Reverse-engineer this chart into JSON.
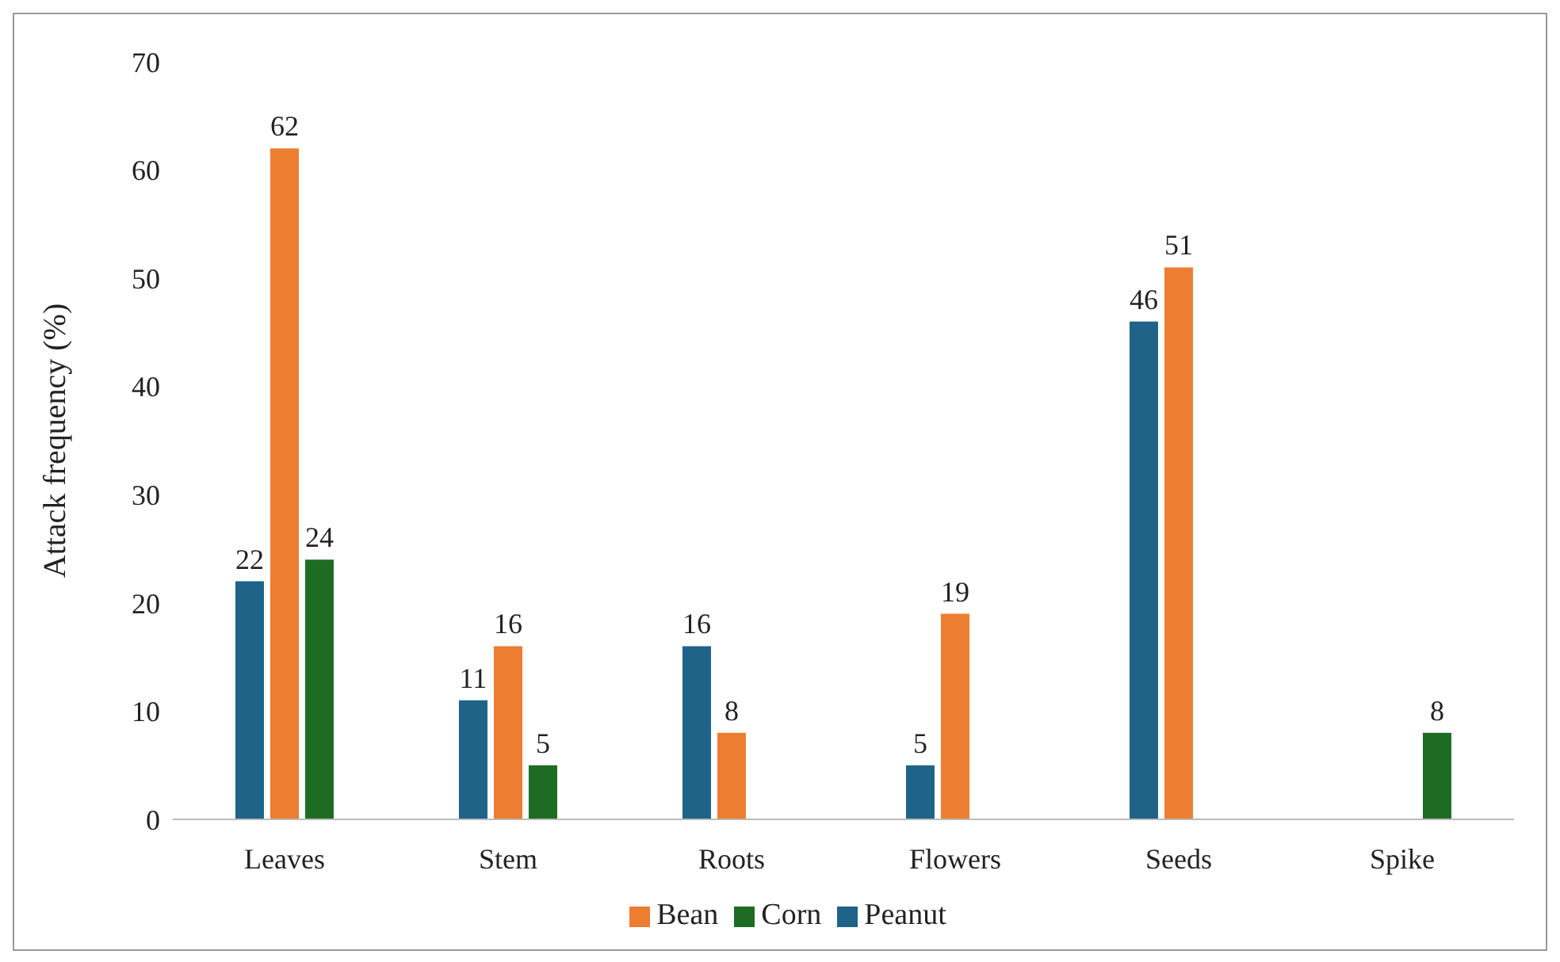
{
  "chart_data": {
    "type": "bar",
    "ylabel": "Attack frequency (%)",
    "categories": [
      "Leaves",
      "Stem",
      "Roots",
      "Flowers",
      "Seeds",
      "Spike"
    ],
    "series": [
      {
        "name": "Peanut",
        "color": "#1f6388",
        "values": [
          22,
          11,
          16,
          5,
          46,
          null
        ]
      },
      {
        "name": "Bean",
        "color": "#ed7d31",
        "values": [
          62,
          16,
          8,
          19,
          51,
          null
        ]
      },
      {
        "name": "Corn",
        "color": "#1e6b24",
        "values": [
          24,
          5,
          null,
          null,
          null,
          8
        ]
      }
    ],
    "ylim": [
      0,
      70
    ],
    "yticks": [
      0,
      10,
      20,
      30,
      40,
      50,
      60,
      70
    ],
    "grid": false,
    "legend": "bottom",
    "data_labels": true
  }
}
